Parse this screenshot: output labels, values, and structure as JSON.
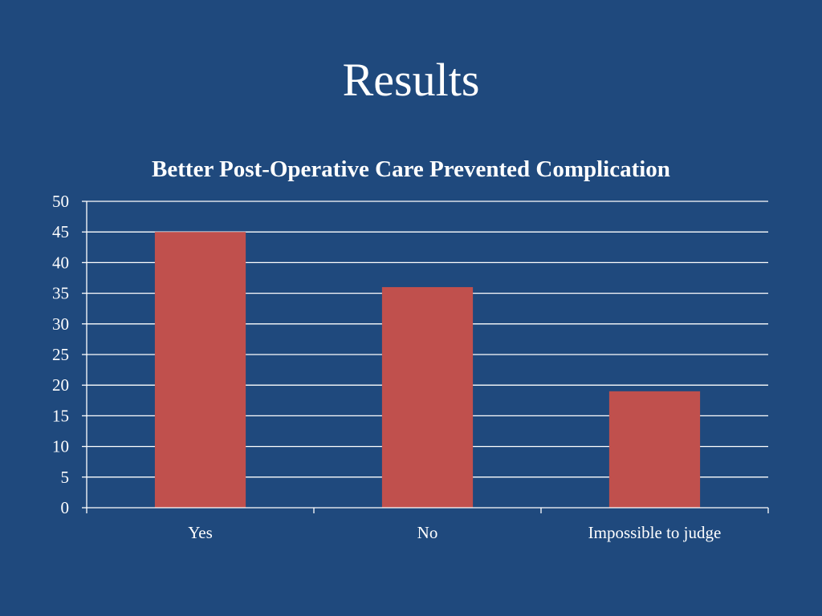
{
  "slide": {
    "title": "Results",
    "background": "#1F497D"
  },
  "chart_data": {
    "type": "bar",
    "title": "Better Post-Operative Care Prevented Complication",
    "categories": [
      "Yes",
      "No",
      "Impossible to judge"
    ],
    "values": [
      45,
      36,
      19
    ],
    "ylim": [
      0,
      50
    ],
    "yticks": [
      0,
      5,
      10,
      15,
      20,
      25,
      30,
      35,
      40,
      45,
      50
    ],
    "grid": true,
    "legend": "none",
    "bar_color": "#C0504D",
    "grid_color": "#FFFFFF",
    "text_color": "#FFFFFF"
  }
}
